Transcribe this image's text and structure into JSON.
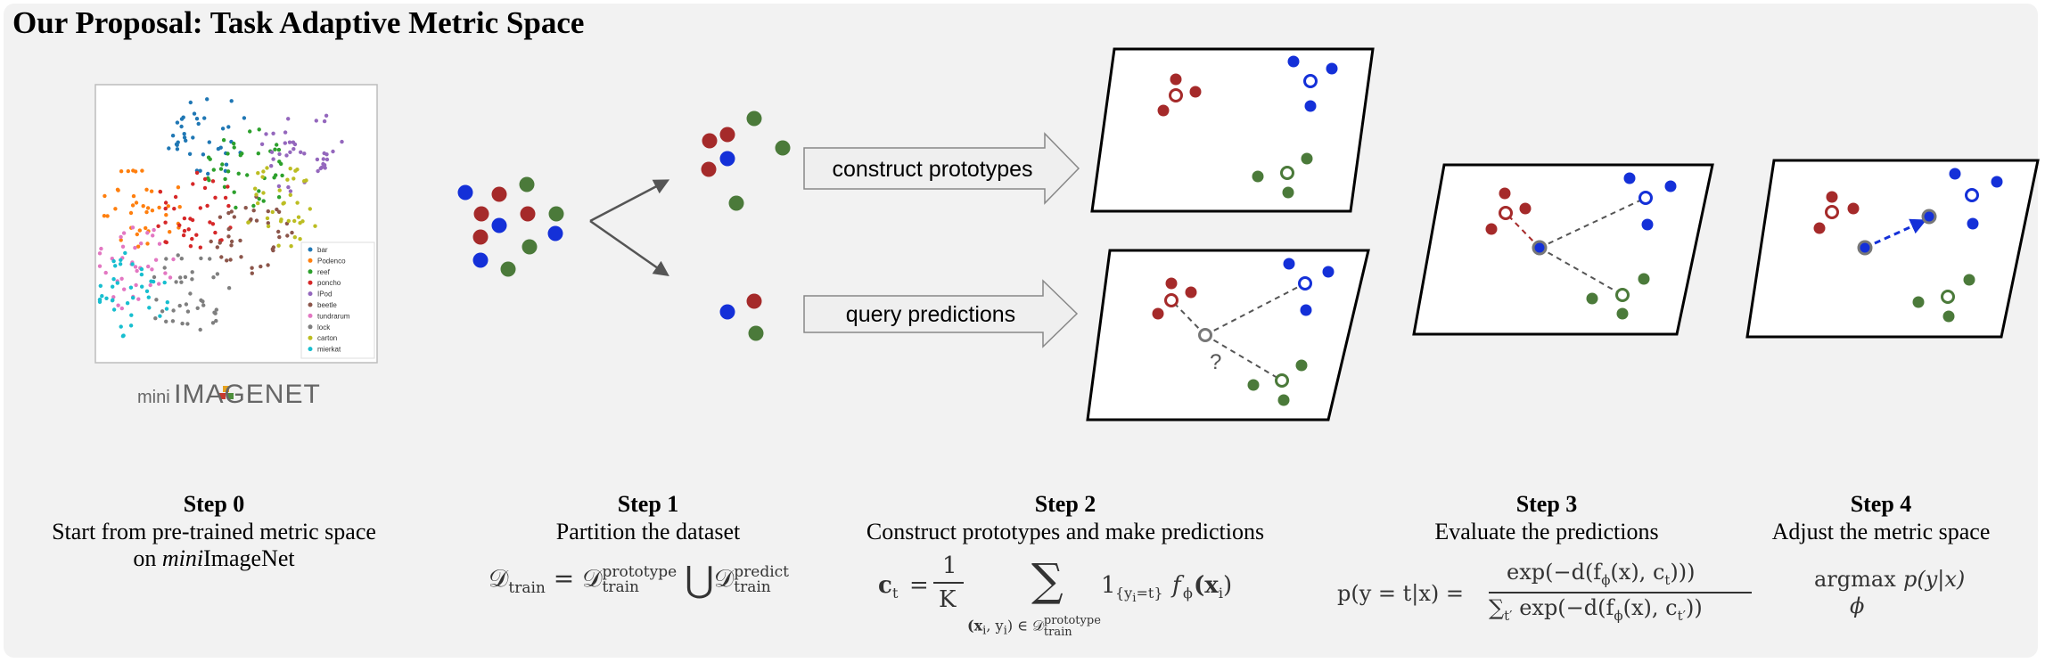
{
  "title": "Our Proposal: Task Adaptive Metric Space",
  "tsne_legend": [
    "bar",
    "Podenco",
    "reef",
    "poncho",
    "IPod",
    "beetle",
    "tundrarum",
    "lock",
    "carton",
    "mierkat"
  ],
  "dataset_brand": {
    "prefix": "mini",
    "name": "IMAGENET"
  },
  "arrow_labels": {
    "construct": "construct prototypes",
    "query": "query predictions"
  },
  "question_mark": "?",
  "colors": {
    "red": "#a52a2a",
    "blue": "#1430d8",
    "green": "#4b7a3a",
    "panel": "#f2f2f2"
  },
  "steps": [
    {
      "heading": "Step 0",
      "line1": "Start from pre-trained metric space",
      "line2_italic": "mini",
      "line2_rest": "ImageNet",
      "line2_prefix": "on "
    },
    {
      "heading": "Step 1",
      "line1": "Partition the dataset"
    },
    {
      "heading": "Step 2",
      "line1": "Construct prototypes and make predictions"
    },
    {
      "heading": "Step 3",
      "line1": "Evaluate the predictions"
    },
    {
      "heading": "Step 4",
      "line1": "Adjust the metric space"
    }
  ],
  "formulas": {
    "step1": {
      "lhs": "𝒟",
      "lhs_sub": "train",
      "eq": "=",
      "d": "𝒟",
      "sup1": "prototype",
      "sub1": "train",
      "union": "⋃",
      "sup2": "predict",
      "sub2": "train"
    },
    "step2": {
      "c": "c",
      "c_sub": "t",
      "eq": "=",
      "num": "1",
      "den": "K",
      "sum": "∑",
      "under": "(x",
      "under_i": "i",
      "under_mid": ", y",
      "under_i2": "i",
      "under_end": ") ∈ 𝒟",
      "under_sup": "prototype",
      "under_sub": "train",
      "ind": "1",
      "ind_sub": "{y",
      "ind_sub_i": "i",
      "ind_sub_end": "=t}",
      "f": "f",
      "f_sub": "ϕ",
      "arg": "(x",
      "arg_i": "i",
      "arg_end": ")"
    },
    "step3": {
      "lhs": "p(y = t|x) =",
      "num": "exp(−d(f",
      "num_sub": "ϕ",
      "num_mid": "(x), c",
      "num_sub2": "t",
      "num_end": ")))",
      "den_sum": "∑",
      "den_sub": "t′",
      "den": " exp(−d(f",
      "den_fsub": "ϕ",
      "den_mid": "(x), c",
      "den_csub": "t′",
      "den_end": "))"
    },
    "step4": {
      "argmax": "argmax",
      "expr": "p(y|x)",
      "under": "ϕ"
    }
  }
}
